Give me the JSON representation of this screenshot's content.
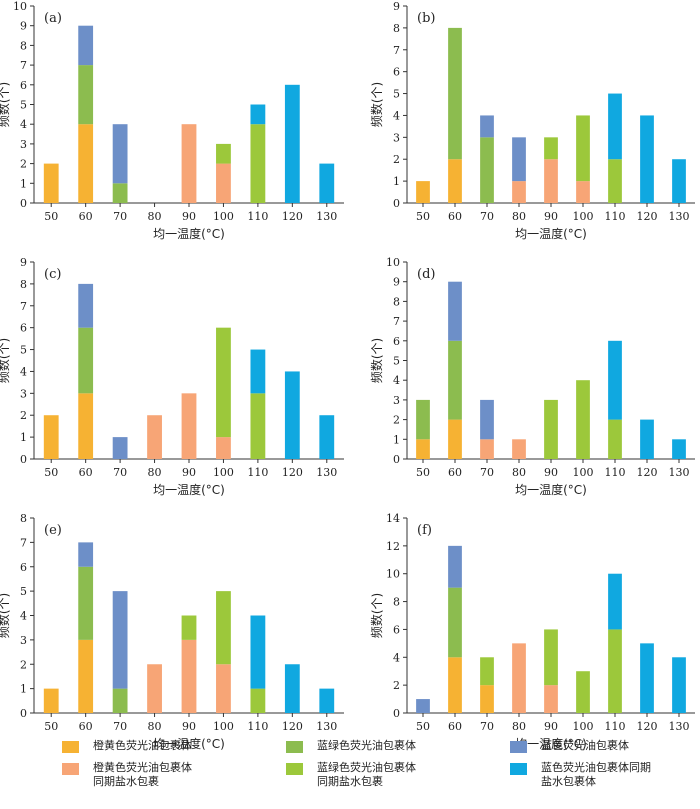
{
  "colors": {
    "orange": "#f6b233",
    "green": "#8cbc4f",
    "blue": "#6d8fc8",
    "salmon": "#f7a576",
    "yellowgreen": "#9cc83b",
    "cyan": "#10a8e0"
  },
  "legend": [
    {
      "key": "orange",
      "label": "橙黄色荧光油包裹体"
    },
    {
      "key": "green",
      "label": "蓝绿色荧光油包裹体"
    },
    {
      "key": "blue",
      "label": "蓝色荧光油包裹体"
    },
    {
      "key": "salmon",
      "label": "橙黄色荧光油包裹体\n同期盐水包裹"
    },
    {
      "key": "yellowgreen",
      "label": "蓝绿色荧光油包裹体\n同期盐水包裹"
    },
    {
      "key": "cyan",
      "label": "蓝色荧光油包裹体同期\n盐水包裹体"
    }
  ],
  "chart_data": [
    {
      "panel": "(a)",
      "type": "bar",
      "stacked": true,
      "categories": [
        "50",
        "60",
        "70",
        "80",
        "90",
        "100",
        "110",
        "120",
        "130"
      ],
      "xlabel": "均一温度(°C)",
      "ylabel": "频数(个)",
      "ylim": [
        0,
        10
      ],
      "yticks": [
        0,
        1,
        2,
        3,
        4,
        5,
        6,
        7,
        8,
        9,
        10
      ],
      "series": [
        {
          "color": "orange",
          "values": [
            2,
            4,
            0,
            0,
            0,
            0,
            0,
            0,
            0
          ]
        },
        {
          "color": "green",
          "values": [
            0,
            3,
            1,
            0,
            0,
            0,
            0,
            0,
            0
          ]
        },
        {
          "color": "blue",
          "values": [
            0,
            2,
            3,
            0,
            0,
            0,
            0,
            0,
            0
          ]
        },
        {
          "color": "salmon",
          "values": [
            0,
            0,
            0,
            0,
            4,
            2,
            0,
            0,
            0
          ]
        },
        {
          "color": "yellowgreen",
          "values": [
            0,
            0,
            0,
            0,
            0,
            1,
            4,
            0,
            0
          ]
        },
        {
          "color": "cyan",
          "values": [
            0,
            0,
            0,
            0,
            0,
            0,
            1,
            6,
            2
          ]
        }
      ]
    },
    {
      "panel": "(b)",
      "type": "bar",
      "stacked": true,
      "categories": [
        "50",
        "60",
        "70",
        "80",
        "90",
        "100",
        "110",
        "120",
        "130"
      ],
      "xlabel": "均一温度(°C)",
      "ylabel": "频数(个)",
      "ylim": [
        0,
        9
      ],
      "yticks": [
        0,
        1,
        2,
        3,
        4,
        5,
        6,
        7,
        8,
        9
      ],
      "series": [
        {
          "color": "orange",
          "values": [
            1,
            2,
            0,
            0,
            0,
            0,
            0,
            0,
            0
          ]
        },
        {
          "color": "green",
          "values": [
            0,
            6,
            3,
            0,
            0,
            0,
            0,
            0,
            0
          ]
        },
        {
          "color": "blue",
          "values": [
            0,
            0,
            1,
            2,
            0,
            0,
            0,
            0,
            0
          ]
        },
        {
          "color": "salmon",
          "values": [
            0,
            0,
            0,
            1,
            2,
            1,
            0,
            0,
            0
          ]
        },
        {
          "color": "yellowgreen",
          "values": [
            0,
            0,
            0,
            0,
            1,
            3,
            2,
            0,
            0
          ]
        },
        {
          "color": "cyan",
          "values": [
            0,
            0,
            0,
            0,
            0,
            0,
            3,
            4,
            2
          ]
        }
      ]
    },
    {
      "panel": "(c)",
      "type": "bar",
      "stacked": true,
      "categories": [
        "50",
        "60",
        "70",
        "80",
        "90",
        "100",
        "110",
        "120",
        "130"
      ],
      "xlabel": "均一温度(°C)",
      "ylabel": "频数(个)",
      "ylim": [
        0,
        9
      ],
      "yticks": [
        0,
        1,
        2,
        3,
        4,
        5,
        6,
        7,
        8,
        9
      ],
      "series": [
        {
          "color": "orange",
          "values": [
            2,
            3,
            0,
            0,
            0,
            0,
            0,
            0,
            0
          ]
        },
        {
          "color": "green",
          "values": [
            0,
            3,
            0,
            0,
            0,
            0,
            0,
            0,
            0
          ]
        },
        {
          "color": "blue",
          "values": [
            0,
            2,
            1,
            0,
            0,
            0,
            0,
            0,
            0
          ]
        },
        {
          "color": "salmon",
          "values": [
            0,
            0,
            0,
            2,
            3,
            1,
            0,
            0,
            0
          ]
        },
        {
          "color": "yellowgreen",
          "values": [
            0,
            0,
            0,
            0,
            0,
            5,
            3,
            0,
            0
          ]
        },
        {
          "color": "cyan",
          "values": [
            0,
            0,
            0,
            0,
            0,
            0,
            2,
            4,
            2
          ]
        }
      ]
    },
    {
      "panel": "(d)",
      "type": "bar",
      "stacked": true,
      "categories": [
        "50",
        "60",
        "70",
        "80",
        "90",
        "100",
        "110",
        "120",
        "130"
      ],
      "xlabel": "均一温度(°C)",
      "ylabel": "频数(个)",
      "ylim": [
        0,
        10
      ],
      "yticks": [
        0,
        1,
        2,
        3,
        4,
        5,
        6,
        7,
        8,
        9,
        10
      ],
      "series": [
        {
          "color": "orange",
          "values": [
            1,
            2,
            0,
            0,
            0,
            0,
            0,
            0,
            0
          ]
        },
        {
          "color": "green",
          "values": [
            2,
            4,
            0,
            0,
            0,
            0,
            0,
            0,
            0
          ]
        },
        {
          "color": "blue",
          "values": [
            0,
            3,
            2,
            0,
            0,
            0,
            0,
            0,
            0
          ]
        },
        {
          "color": "salmon",
          "values": [
            0,
            0,
            1,
            1,
            0,
            0,
            0,
            0,
            0
          ]
        },
        {
          "color": "yellowgreen",
          "values": [
            0,
            0,
            0,
            0,
            3,
            4,
            2,
            0,
            0
          ]
        },
        {
          "color": "cyan",
          "values": [
            0,
            0,
            0,
            0,
            0,
            0,
            4,
            2,
            1
          ]
        }
      ]
    },
    {
      "panel": "(e)",
      "type": "bar",
      "stacked": true,
      "categories": [
        "50",
        "60",
        "70",
        "80",
        "90",
        "100",
        "110",
        "120",
        "130"
      ],
      "xlabel": "均一温度(°C)",
      "ylabel": "频数(个)",
      "ylim": [
        0,
        8
      ],
      "yticks": [
        0,
        1,
        2,
        3,
        4,
        5,
        6,
        7,
        8
      ],
      "series": [
        {
          "color": "orange",
          "values": [
            1,
            3,
            0,
            0,
            0,
            0,
            0,
            0,
            0
          ]
        },
        {
          "color": "green",
          "values": [
            0,
            3,
            1,
            0,
            0,
            0,
            0,
            0,
            0
          ]
        },
        {
          "color": "blue",
          "values": [
            0,
            1,
            4,
            0,
            0,
            0,
            0,
            0,
            0
          ]
        },
        {
          "color": "salmon",
          "values": [
            0,
            0,
            0,
            2,
            3,
            2,
            0,
            0,
            0
          ]
        },
        {
          "color": "yellowgreen",
          "values": [
            0,
            0,
            0,
            0,
            1,
            3,
            1,
            0,
            0
          ]
        },
        {
          "color": "cyan",
          "values": [
            0,
            0,
            0,
            0,
            0,
            0,
            3,
            2,
            1
          ]
        }
      ]
    },
    {
      "panel": "(f)",
      "type": "bar",
      "stacked": true,
      "categories": [
        "50",
        "60",
        "70",
        "80",
        "90",
        "100",
        "110",
        "120",
        "130"
      ],
      "xlabel": "均一温度(°C)",
      "ylabel": "频数(个)",
      "ylim": [
        0,
        14
      ],
      "yticks": [
        0,
        2,
        4,
        6,
        8,
        10,
        12,
        14
      ],
      "series": [
        {
          "color": "orange",
          "values": [
            0,
            4,
            2,
            0,
            0,
            0,
            0,
            0,
            0
          ]
        },
        {
          "color": "green",
          "values": [
            0,
            5,
            0,
            0,
            0,
            0,
            0,
            0,
            0
          ]
        },
        {
          "color": "blue",
          "values": [
            1,
            3,
            0,
            0,
            0,
            0,
            0,
            0,
            0
          ]
        },
        {
          "color": "salmon",
          "values": [
            0,
            0,
            0,
            5,
            2,
            0,
            0,
            0,
            0
          ]
        },
        {
          "color": "yellowgreen",
          "values": [
            0,
            0,
            2,
            0,
            4,
            3,
            6,
            0,
            0
          ]
        },
        {
          "color": "cyan",
          "values": [
            0,
            0,
            0,
            0,
            0,
            0,
            4,
            5,
            4
          ]
        }
      ]
    }
  ]
}
